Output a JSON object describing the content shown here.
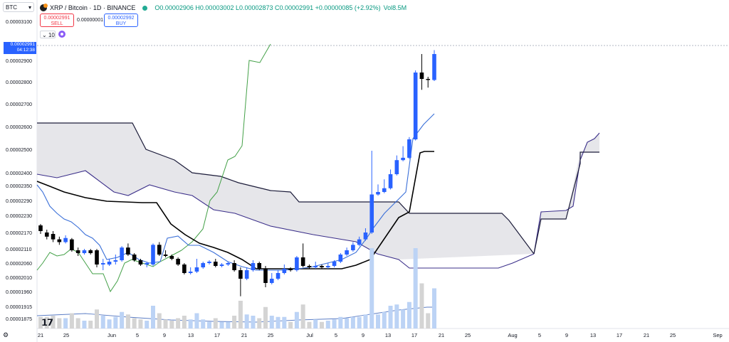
{
  "header": {
    "ticker_select": "BTC",
    "title": "XRP / Bitcoin · 1D · BINANCE",
    "ohlc": "O0.00002906 H0.00003002 L0.00002873 C0.00002991 +0.00000085 (+2.92%)",
    "volume": "Vol8.5M"
  },
  "trade": {
    "sell_price": "0.00002991",
    "sell_label": "SELL",
    "spread": "0.00000001",
    "buy_price": "0.00002992",
    "buy_label": "BUY"
  },
  "indicators": {
    "count": "10"
  },
  "price_tag": {
    "price": "0.00002991",
    "countdown": "04:12:38"
  },
  "colors": {
    "up": "#2962ff",
    "down": "#000000",
    "conversion": "#3a6fd8",
    "base": "#000000",
    "lagging": "#43a047",
    "cloud_fill": "#e6e6ea",
    "cloud_edge": "#1c1c3a",
    "volume_up": "#bcd3f5",
    "volume_down": "#d4d4d4"
  },
  "icons": {
    "gear": "gear-icon",
    "logo": "tradingview-logo"
  },
  "chart_data": {
    "type": "candlestick",
    "y_ticks": [
      "0.00003100",
      "0.00002900",
      "0.00002800",
      "0.00002700",
      "0.00002600",
      "0.00002500",
      "0.00002400",
      "0.00002350",
      "0.00002290",
      "0.00002230",
      "0.00002170",
      "0.00002110",
      "0.00002060",
      "0.00002010",
      "0.00001960",
      "0.00001915",
      "0.00001875"
    ],
    "x_ticks": [
      "21",
      "25",
      "Jun",
      "5",
      "9",
      "13",
      "17",
      "21",
      "25",
      "Jul",
      "5",
      "9",
      "13",
      "17",
      "21",
      "25",
      "Aug",
      "5",
      "9",
      "13",
      "17",
      "21",
      "25",
      "Sep"
    ],
    "candles": [
      {
        "o": 2200,
        "c": 2180,
        "h": 2205,
        "l": 2170
      },
      {
        "o": 2175,
        "c": 2160,
        "h": 2185,
        "l": 2150
      },
      {
        "o": 2170,
        "c": 2150,
        "h": 2180,
        "l": 2140
      },
      {
        "o": 2150,
        "c": 2140,
        "h": 2160,
        "l": 2130
      },
      {
        "o": 2140,
        "c": 2155,
        "h": 2165,
        "l": 2135
      },
      {
        "o": 2150,
        "c": 2110,
        "h": 2155,
        "l": 2105
      },
      {
        "o": 2110,
        "c": 2100,
        "h": 2120,
        "l": 2090
      },
      {
        "o": 2100,
        "c": 2110,
        "h": 2115,
        "l": 2095
      },
      {
        "o": 2110,
        "c": 2100,
        "h": 2115,
        "l": 2095
      },
      {
        "o": 2110,
        "c": 2060,
        "h": 2115,
        "l": 2050
      },
      {
        "o": 2060,
        "c": 2065,
        "h": 2080,
        "l": 2040
      },
      {
        "o": 2060,
        "c": 2070,
        "h": 2080,
        "l": 2055
      },
      {
        "o": 2070,
        "c": 2075,
        "h": 2095,
        "l": 2060
      },
      {
        "o": 2075,
        "c": 2120,
        "h": 2125,
        "l": 2070
      },
      {
        "o": 2120,
        "c": 2095,
        "h": 2135,
        "l": 2090
      },
      {
        "o": 2095,
        "c": 2075,
        "h": 2100,
        "l": 2070
      },
      {
        "o": 2075,
        "c": 2060,
        "h": 2080,
        "l": 2055
      },
      {
        "o": 2060,
        "c": 2065,
        "h": 2070,
        "l": 2050
      },
      {
        "o": 2060,
        "c": 2130,
        "h": 2135,
        "l": 2055
      },
      {
        "o": 2130,
        "c": 2095,
        "h": 2140,
        "l": 2090
      },
      {
        "o": 2095,
        "c": 2090,
        "h": 2110,
        "l": 2085
      },
      {
        "o": 2090,
        "c": 2080,
        "h": 2095,
        "l": 2075
      },
      {
        "o": 2080,
        "c": 2060,
        "h": 2085,
        "l": 2055
      },
      {
        "o": 2060,
        "c": 2030,
        "h": 2065,
        "l": 2025
      },
      {
        "o": 2030,
        "c": 2035,
        "h": 2050,
        "l": 2025
      },
      {
        "o": 2035,
        "c": 2050,
        "h": 2080,
        "l": 2030
      },
      {
        "o": 2050,
        "c": 2065,
        "h": 2070,
        "l": 2045
      },
      {
        "o": 2065,
        "c": 2070,
        "h": 2075,
        "l": 2060
      },
      {
        "o": 2070,
        "c": 2055,
        "h": 2080,
        "l": 2050
      },
      {
        "o": 2055,
        "c": 2060,
        "h": 2065,
        "l": 2050
      },
      {
        "o": 2060,
        "c": 2065,
        "h": 2070,
        "l": 2055
      },
      {
        "o": 2065,
        "c": 2040,
        "h": 2075,
        "l": 2035
      },
      {
        "o": 2040,
        "c": 2010,
        "h": 2050,
        "l": 1950
      },
      {
        "o": 2010,
        "c": 2040,
        "h": 2050,
        "l": 2005
      },
      {
        "o": 2040,
        "c": 2065,
        "h": 2075,
        "l": 2035
      },
      {
        "o": 2065,
        "c": 2045,
        "h": 2070,
        "l": 2040
      },
      {
        "o": 2045,
        "c": 1995,
        "h": 2055,
        "l": 1980
      },
      {
        "o": 1995,
        "c": 2010,
        "h": 2030,
        "l": 1990
      },
      {
        "o": 2010,
        "c": 2030,
        "h": 2040,
        "l": 2005
      },
      {
        "o": 2030,
        "c": 2045,
        "h": 2060,
        "l": 2025
      },
      {
        "o": 2045,
        "c": 2040,
        "h": 2050,
        "l": 2035
      },
      {
        "o": 2040,
        "c": 2085,
        "h": 2090,
        "l": 2035
      },
      {
        "o": 2085,
        "c": 2055,
        "h": 2135,
        "l": 2050
      },
      {
        "o": 2055,
        "c": 2050,
        "h": 2060,
        "l": 2045
      },
      {
        "o": 2050,
        "c": 2055,
        "h": 2070,
        "l": 2045
      },
      {
        "o": 2055,
        "c": 2050,
        "h": 2060,
        "l": 2045
      },
      {
        "o": 2050,
        "c": 2055,
        "h": 2065,
        "l": 2045
      },
      {
        "o": 2055,
        "c": 2070,
        "h": 2075,
        "l": 2050
      },
      {
        "o": 2070,
        "c": 2095,
        "h": 2100,
        "l": 2065
      },
      {
        "o": 2095,
        "c": 2110,
        "h": 2120,
        "l": 2090
      },
      {
        "o": 2110,
        "c": 2130,
        "h": 2140,
        "l": 2105
      },
      {
        "o": 2130,
        "c": 2150,
        "h": 2160,
        "l": 2125
      },
      {
        "o": 2150,
        "c": 2175,
        "h": 2190,
        "l": 2145
      },
      {
        "o": 2175,
        "c": 2320,
        "h": 2500,
        "l": 2170
      },
      {
        "o": 2320,
        "c": 2330,
        "h": 2360,
        "l": 2315
      },
      {
        "o": 2330,
        "c": 2345,
        "h": 2380,
        "l": 2325
      },
      {
        "o": 2345,
        "c": 2400,
        "h": 2420,
        "l": 2340
      },
      {
        "o": 2400,
        "c": 2460,
        "h": 2480,
        "l": 2395
      },
      {
        "o": 2460,
        "c": 2470,
        "h": 2520,
        "l": 2455
      },
      {
        "o": 2470,
        "c": 2550,
        "h": 2560,
        "l": 2465
      },
      {
        "o": 2550,
        "c": 2850,
        "h": 2860,
        "l": 2545
      },
      {
        "o": 2850,
        "c": 2820,
        "h": 2940,
        "l": 2770
      },
      {
        "o": 2820,
        "c": 2815,
        "h": 2830,
        "l": 2780
      },
      {
        "o": 2815,
        "c": 2940,
        "h": 2960,
        "l": 2810
      }
    ]
  }
}
